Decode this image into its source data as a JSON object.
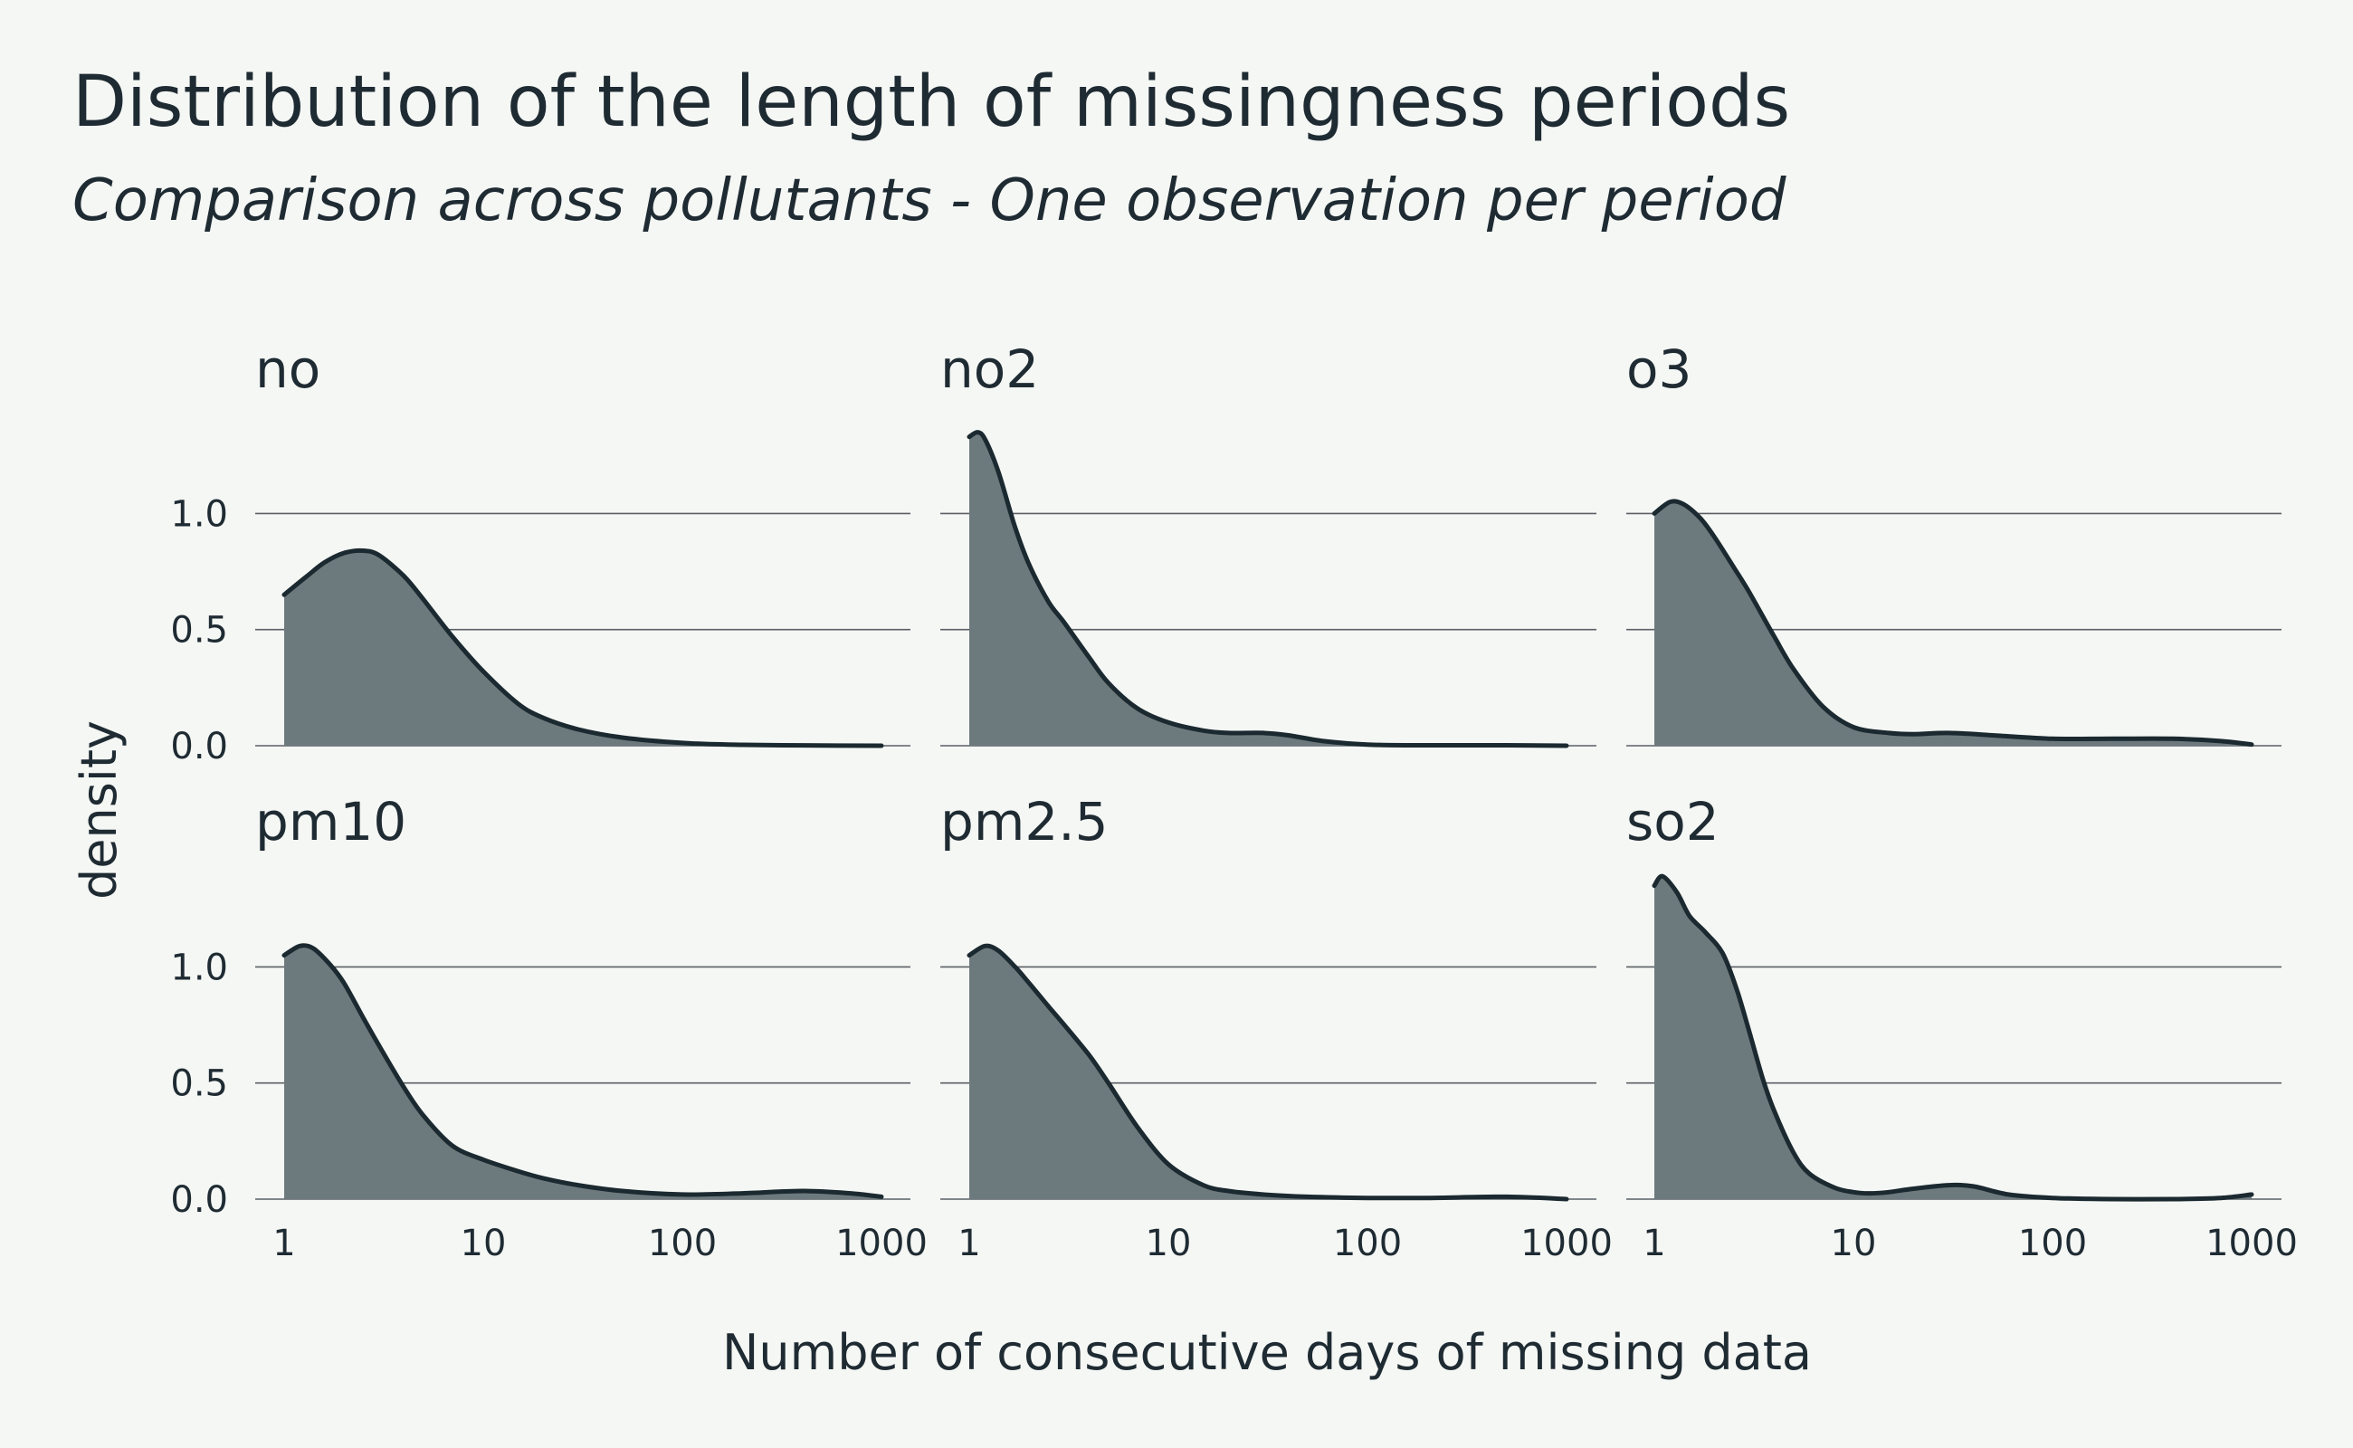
{
  "title": "Distribution of the length of missingness periods",
  "subtitle": "Comparison across pollutants - One observation per period",
  "chart_data": {
    "type": "area",
    "xlabel": "Number of consecutive days of missing data",
    "ylabel": "density",
    "x_scale": "log10",
    "xlim": [
      1,
      1000
    ],
    "xticks": [
      1,
      10,
      100,
      1000
    ],
    "xtick_labels": [
      "1",
      "10",
      "100",
      "1000"
    ],
    "ylim": [
      0,
      1.4
    ],
    "yticks": [
      0.0,
      0.5,
      1.0
    ],
    "ytick_labels": [
      "0.0",
      "0.5",
      "1.0"
    ],
    "grid": "horizontal",
    "layout": "2 rows x 3 columns, shared axes",
    "colors": {
      "fill": "#6d7a7d",
      "line": "#1b2930",
      "background": "#f5f7f4",
      "grid": "#5a6066"
    },
    "panels": [
      {
        "name": "no",
        "x": [
          1,
          1.3,
          1.6,
          2,
          2.5,
          3,
          4,
          5,
          7,
          10,
          15,
          20,
          30,
          50,
          100,
          200,
          500,
          1000
        ],
        "y": [
          0.65,
          0.73,
          0.79,
          0.83,
          0.84,
          0.82,
          0.73,
          0.63,
          0.47,
          0.32,
          0.18,
          0.12,
          0.07,
          0.035,
          0.012,
          0.004,
          0.001,
          0.0
        ]
      },
      {
        "name": "no2",
        "x": [
          1,
          1.1,
          1.2,
          1.4,
          1.7,
          2,
          2.5,
          3,
          4,
          5,
          7,
          10,
          15,
          20,
          30,
          40,
          60,
          100,
          200,
          500,
          1000
        ],
        "y": [
          1.33,
          1.35,
          1.32,
          1.18,
          0.94,
          0.78,
          0.62,
          0.53,
          0.38,
          0.27,
          0.16,
          0.1,
          0.065,
          0.055,
          0.055,
          0.045,
          0.02,
          0.005,
          0.002,
          0.002,
          0.0
        ]
      },
      {
        "name": "o3",
        "x": [
          1,
          1.2,
          1.4,
          1.7,
          2,
          2.5,
          3,
          4,
          5,
          7,
          10,
          15,
          20,
          30,
          50,
          100,
          200,
          400,
          700,
          1000
        ],
        "y": [
          1.0,
          1.05,
          1.04,
          0.98,
          0.9,
          0.77,
          0.66,
          0.47,
          0.33,
          0.17,
          0.08,
          0.055,
          0.05,
          0.055,
          0.045,
          0.03,
          0.03,
          0.03,
          0.02,
          0.005
        ]
      },
      {
        "name": "pm10",
        "x": [
          1,
          1.2,
          1.4,
          1.7,
          2,
          2.5,
          3,
          4,
          5,
          7,
          10,
          15,
          20,
          30,
          50,
          100,
          200,
          400,
          700,
          1000
        ],
        "y": [
          1.05,
          1.09,
          1.08,
          1.01,
          0.93,
          0.78,
          0.66,
          0.48,
          0.36,
          0.23,
          0.17,
          0.12,
          0.09,
          0.06,
          0.035,
          0.02,
          0.025,
          0.035,
          0.025,
          0.01
        ]
      },
      {
        "name": "pm2.5",
        "x": [
          1,
          1.2,
          1.4,
          1.7,
          2,
          2.5,
          3,
          4,
          5,
          7,
          10,
          15,
          20,
          30,
          50,
          100,
          200,
          500,
          1000
        ],
        "y": [
          1.05,
          1.09,
          1.07,
          1.0,
          0.93,
          0.83,
          0.75,
          0.62,
          0.5,
          0.31,
          0.15,
          0.06,
          0.035,
          0.02,
          0.01,
          0.005,
          0.005,
          0.01,
          0.0
        ]
      },
      {
        "name": "so2",
        "x": [
          1,
          1.1,
          1.3,
          1.5,
          1.8,
          2.2,
          2.6,
          3,
          3.5,
          4,
          5,
          6,
          8,
          10,
          12,
          15,
          20,
          30,
          40,
          60,
          100,
          200,
          400,
          700,
          1000
        ],
        "y": [
          1.35,
          1.39,
          1.32,
          1.22,
          1.15,
          1.06,
          0.9,
          0.72,
          0.52,
          0.38,
          0.2,
          0.11,
          0.05,
          0.03,
          0.025,
          0.03,
          0.045,
          0.06,
          0.055,
          0.02,
          0.005,
          0.0,
          0.0,
          0.005,
          0.02
        ]
      }
    ]
  }
}
